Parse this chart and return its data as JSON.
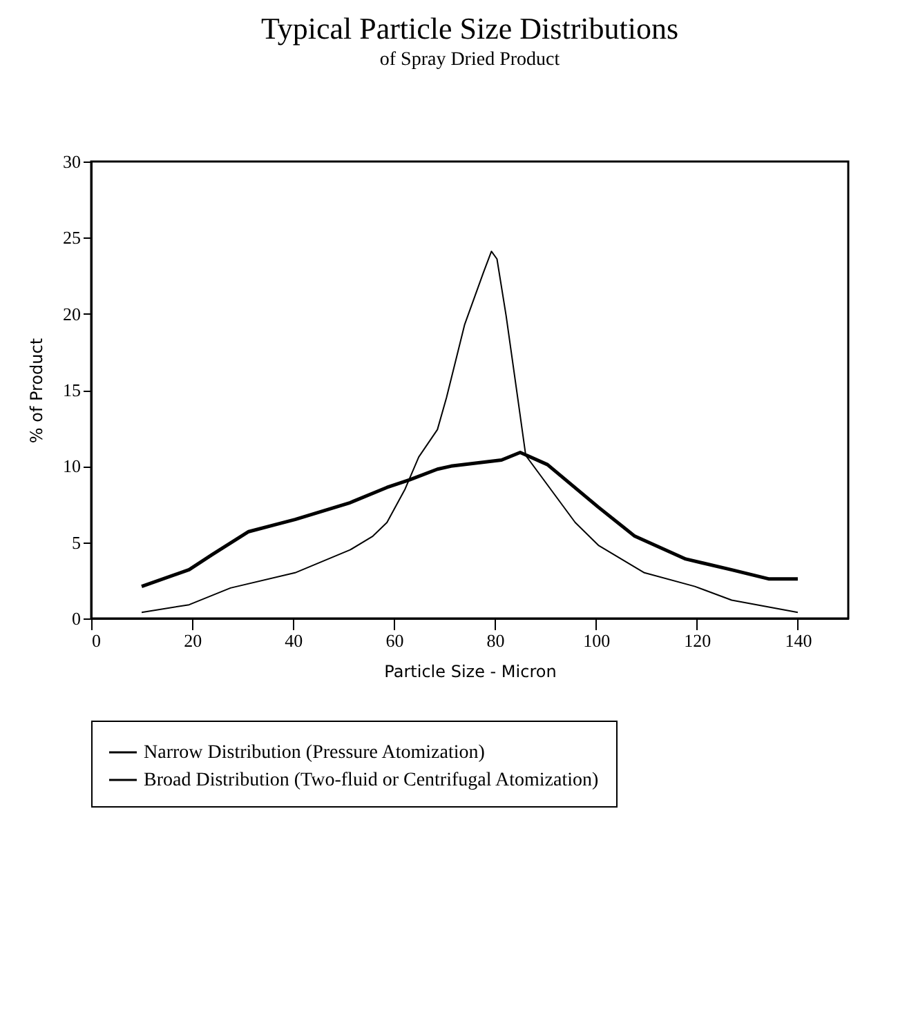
{
  "chart_data": {
    "type": "line",
    "title": "Typical Particle Size Distributions",
    "subtitle": "of Spray Dried Product",
    "xlabel": "Particle Size - Micron",
    "ylabel": "% of Product",
    "xlim": [
      0,
      150
    ],
    "xticks": [
      0,
      20,
      40,
      60,
      80,
      100,
      120,
      140
    ],
    "ylim": [
      0,
      30
    ],
    "yticks": [
      0,
      5,
      10,
      15,
      20,
      25,
      30
    ],
    "grid": false,
    "legend": "bottom",
    "marker": "none",
    "line_style": "solid",
    "series": [
      {
        "name": "Narrow Distribution (Pressure Atomization)",
        "color": "#000000",
        "x": [
          10,
          19.4,
          27.6,
          40.4,
          51.3,
          55.8,
          58.6,
          62.2,
          64.9,
          68.6,
          70.4,
          74,
          77.7,
          79.3,
          80.4,
          82.2,
          84.5,
          86.1,
          95.9,
          100.5,
          109.6,
          119.6,
          126.9,
          140
        ],
        "values": [
          0.4,
          0.9,
          2,
          3,
          4.5,
          5.4,
          6.3,
          8.5,
          10.6,
          12.4,
          14.5,
          19.3,
          22.7,
          24.1,
          23.6,
          19.9,
          14.5,
          10.7,
          6.3,
          4.8,
          3,
          2.1,
          1.2,
          0.4
        ]
      },
      {
        "name": "Broad Distribution (Two-fluid or Centrifugal Atomization)",
        "color": "#000000",
        "x": [
          10,
          19.4,
          24,
          31.2,
          40.4,
          51.3,
          58.6,
          63.1,
          68.6,
          71.3,
          81.3,
          85,
          90.4,
          100.5,
          107.7,
          117.8,
          126.8,
          134.2,
          140
        ],
        "values": [
          2.1,
          3.2,
          4.2,
          5.7,
          6.5,
          7.6,
          8.6,
          9.1,
          9.8,
          10,
          10.4,
          10.9,
          10.1,
          7.3,
          5.4,
          3.9,
          3.2,
          2.6,
          2.6
        ]
      }
    ]
  }
}
